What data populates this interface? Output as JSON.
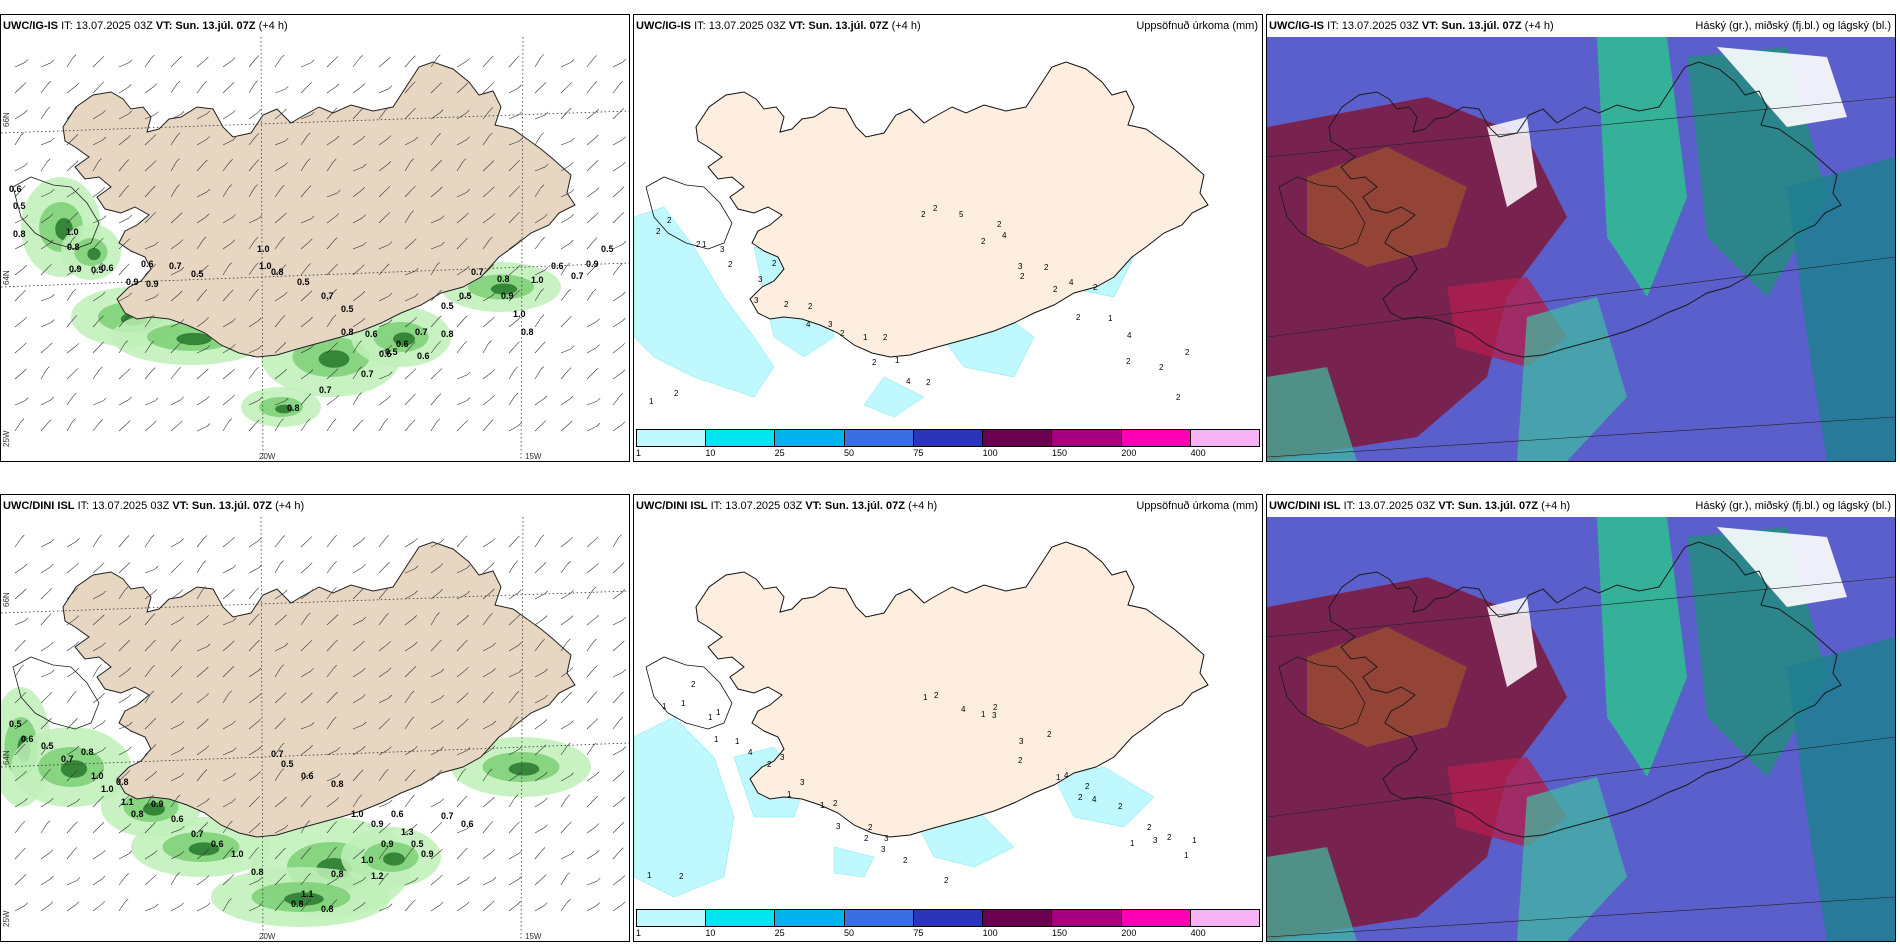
{
  "shared": {
    "issue_time": "IT: 13.07.2025 03Z",
    "valid_time": "VT: Sun. 13.júl. 07Z",
    "lead": "(+4 h)",
    "precip_title": "Uppsöfnuð úrkoma (mm)",
    "cloud_title": "Háský (gr.), miðský (fj.bl.) og lágský (bl.)",
    "lon_labels": [
      "20W",
      "15W"
    ],
    "lat_labels": [
      "66N",
      "64N",
      "25W"
    ],
    "colorbar": {
      "labels": [
        "1",
        "10",
        "25",
        "50",
        "75",
        "100",
        "150",
        "200",
        "400"
      ],
      "colors": [
        "#bff9ff",
        "#00e5ee",
        "#00b2ee",
        "#3a6fe0",
        "#2a35b8",
        "#6a004f",
        "#a50080",
        "#ff00b4",
        "#f5b3f5"
      ]
    }
  },
  "rows": [
    {
      "model": "UWC/IG-IS",
      "wind_labels": [
        "0.6",
        "0.5",
        "0.8",
        "1.0",
        "0.8",
        "0.9",
        "0.5",
        "0.6",
        "0.9",
        "0.6",
        "0.9",
        "0.7",
        "0.5",
        "1.0",
        "1.0",
        "0.8",
        "0.5",
        "0.7",
        "0.5",
        "0.8",
        "0.6",
        "0.5",
        "0.7",
        "0.5",
        "0.6",
        "0.7",
        "0.6",
        "0.8",
        "0.5",
        "0.5",
        "0.7",
        "0.8",
        "0.9",
        "1.0",
        "0.8",
        "1.0",
        "0.6",
        "0.7",
        "0.9",
        "0.5",
        "0.8",
        "0.7"
      ],
      "precip_labels": [
        "2",
        "1",
        "3",
        "4",
        "2",
        "2",
        "2",
        "2",
        "2",
        "2",
        "2",
        "2",
        "2",
        "2",
        "2",
        "1",
        "2",
        "4",
        "2",
        "1",
        "2",
        "1",
        "2",
        "3",
        "2",
        "1",
        "4",
        "5",
        "3",
        "4",
        "4",
        "2",
        "2",
        "3",
        "2",
        "3",
        "2",
        "2",
        "2",
        "2",
        "2"
      ]
    },
    {
      "model": "UWC/DINI ISL",
      "wind_labels": [
        "0.5",
        "0.6",
        "0.5",
        "0.7",
        "0.8",
        "1.0",
        "1.0",
        "0.8",
        "1.1",
        "0.8",
        "0.9",
        "0.6",
        "0.7",
        "0.6",
        "1.0",
        "0.8",
        "0.7",
        "0.5",
        "0.6",
        "0.8",
        "1.0",
        "0.9",
        "0.9",
        "0.6",
        "1.3",
        "0.5",
        "0.9",
        "1.0",
        "1.2",
        "0.8",
        "1.1",
        "0.8",
        "0.8",
        "0.7",
        "0.6"
      ],
      "precip_labels": [
        "1",
        "1",
        "2",
        "1",
        "2",
        "1",
        "1",
        "2",
        "2",
        "1",
        "1",
        "1",
        "1",
        "1",
        "3",
        "3",
        "2",
        "3",
        "1",
        "4",
        "3",
        "1",
        "1",
        "4",
        "3",
        "2",
        "2",
        "4",
        "3",
        "4",
        "2",
        "2",
        "2",
        "1",
        "3",
        "2",
        "3",
        "2",
        "2",
        "2",
        "2",
        "2",
        "1",
        "2"
      ]
    }
  ]
}
